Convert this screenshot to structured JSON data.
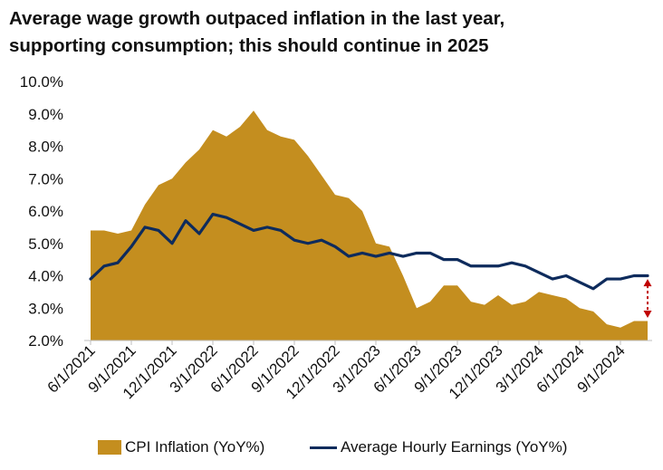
{
  "title": {
    "line1": "Average wage growth outpaced inflation in the last year,",
    "line2": "supporting consumption; this should continue in 2025"
  },
  "colors": {
    "cpi": "#C48E1F",
    "earnings": "#0E2B5C",
    "marker": "#C00000",
    "axis": "#BFBFBF"
  },
  "legend": {
    "cpi_label": "CPI Inflation (YoY%)",
    "earnings_label": "Average Hourly Earnings (YoY%)"
  },
  "chart_data": {
    "type": "area",
    "title": "Average wage growth outpaced inflation in the last year, supporting consumption; this should continue in 2025",
    "xlabel": "",
    "ylabel": "",
    "ylim": [
      2.0,
      10.0
    ],
    "y_ticks": [
      "2.0%",
      "3.0%",
      "4.0%",
      "5.0%",
      "6.0%",
      "7.0%",
      "8.0%",
      "9.0%",
      "10.0%"
    ],
    "x_tick_labels": [
      "6/1/2021",
      "9/1/2021",
      "12/1/2021",
      "3/1/2022",
      "6/1/2022",
      "9/1/2022",
      "12/1/2022",
      "3/1/2023",
      "6/1/2023",
      "9/1/2023",
      "12/1/2023",
      "3/1/2024",
      "6/1/2024",
      "9/1/2024"
    ],
    "x": [
      "6/1/2021",
      "7/1/2021",
      "8/1/2021",
      "9/1/2021",
      "10/1/2021",
      "11/1/2021",
      "12/1/2021",
      "1/1/2022",
      "2/1/2022",
      "3/1/2022",
      "4/1/2022",
      "5/1/2022",
      "6/1/2022",
      "7/1/2022",
      "8/1/2022",
      "9/1/2022",
      "10/1/2022",
      "11/1/2022",
      "12/1/2022",
      "1/1/2023",
      "2/1/2023",
      "3/1/2023",
      "4/1/2023",
      "5/1/2023",
      "6/1/2023",
      "7/1/2023",
      "8/1/2023",
      "9/1/2023",
      "10/1/2023",
      "11/1/2023",
      "12/1/2023",
      "1/1/2024",
      "2/1/2024",
      "3/1/2024",
      "4/1/2024",
      "5/1/2024",
      "6/1/2024",
      "7/1/2024",
      "8/1/2024",
      "9/1/2024",
      "10/1/2024",
      "11/1/2024"
    ],
    "grid": false,
    "legend_position": "bottom",
    "series": [
      {
        "name": "CPI Inflation (YoY%)",
        "type": "area",
        "values": [
          5.4,
          5.4,
          5.3,
          5.4,
          6.2,
          6.8,
          7.0,
          7.5,
          7.9,
          8.5,
          8.3,
          8.6,
          9.1,
          8.5,
          8.3,
          8.2,
          7.7,
          7.1,
          6.5,
          6.4,
          6.0,
          5.0,
          4.9,
          4.0,
          3.0,
          3.2,
          3.7,
          3.7,
          3.2,
          3.1,
          3.4,
          3.1,
          3.2,
          3.5,
          3.4,
          3.3,
          3.0,
          2.9,
          2.5,
          2.4,
          2.6,
          2.6
        ]
      },
      {
        "name": "Average Hourly Earnings (YoY%)",
        "type": "line",
        "values": [
          3.9,
          4.3,
          4.4,
          4.9,
          5.5,
          5.4,
          5.0,
          5.7,
          5.3,
          5.9,
          5.8,
          5.6,
          5.4,
          5.5,
          5.4,
          5.1,
          5.0,
          5.1,
          4.9,
          4.6,
          4.7,
          4.6,
          4.7,
          4.6,
          4.7,
          4.7,
          4.5,
          4.5,
          4.3,
          4.3,
          4.3,
          4.4,
          4.3,
          4.1,
          3.9,
          4.0,
          3.8,
          3.6,
          3.9,
          3.9,
          4.0,
          4.0
        ]
      }
    ],
    "annotations": [
      {
        "type": "double-arrow",
        "x": "11/1/2024",
        "from": 2.7,
        "to": 3.9
      }
    ]
  }
}
